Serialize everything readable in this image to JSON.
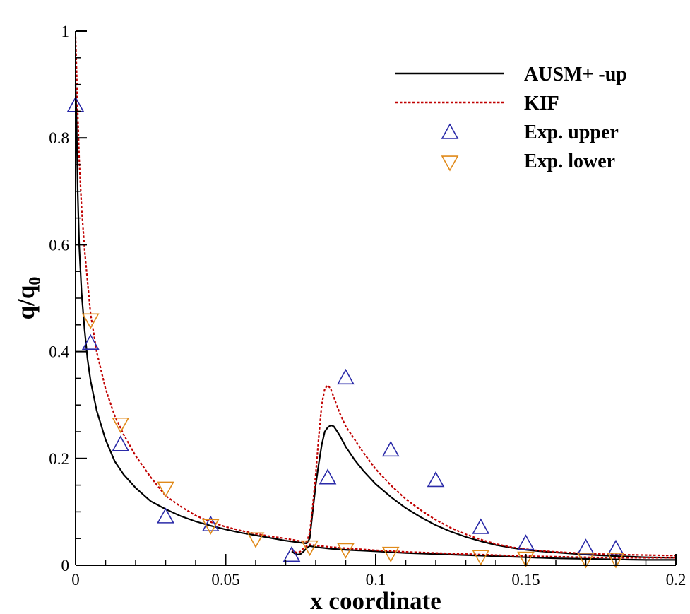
{
  "chart_data": {
    "type": "line",
    "title": "",
    "xlabel": "x coordinate",
    "ylabel": {
      "base": "q/q",
      "sub": "0"
    },
    "xlim": [
      0,
      0.2
    ],
    "ylim": [
      0,
      1
    ],
    "x_ticks": [
      0,
      0.05,
      0.1,
      0.15,
      0.2
    ],
    "x_tick_labels": [
      "0",
      "0.05",
      "0.1",
      "0.15",
      "0.2"
    ],
    "y_ticks": [
      0,
      0.2,
      0.4,
      0.6,
      0.8,
      1
    ],
    "y_tick_labels": [
      "0",
      "0.2",
      "0.4",
      "0.6",
      "0.8",
      "1"
    ],
    "grid": false,
    "legend_position": "top-right",
    "colors": {
      "ausm": "#000000",
      "kif": "#c00000",
      "upper": "#2a2aa8",
      "lower": "#e08a1a"
    },
    "series": [
      {
        "name": "AUSM+ -up",
        "style": "solid",
        "color": "#000000",
        "branches": [
          {
            "x": [
              0,
              0.0003,
              0.0007,
              0.0012,
              0.002,
              0.003,
              0.004,
              0.005,
              0.007,
              0.01,
              0.013,
              0.016,
              0.02,
              0.025,
              0.03,
              0.035,
              0.04,
              0.045,
              0.05,
              0.055,
              0.06,
              0.065,
              0.07,
              0.074,
              0.077,
              0.078,
              0.079,
              0.08,
              0.081,
              0.082,
              0.083,
              0.084,
              0.085,
              0.086,
              0.087,
              0.088,
              0.09,
              0.093,
              0.096,
              0.1,
              0.105,
              0.11,
              0.115,
              0.12,
              0.125,
              0.13,
              0.135,
              0.14,
              0.145,
              0.15,
              0.155,
              0.16,
              0.17,
              0.18,
              0.19,
              0.2
            ],
            "y": [
              0.9,
              0.84,
              0.7,
              0.6,
              0.51,
              0.44,
              0.385,
              0.345,
              0.29,
              0.235,
              0.195,
              0.17,
              0.145,
              0.12,
              0.105,
              0.092,
              0.082,
              0.074,
              0.067,
              0.061,
              0.056,
              0.051,
              0.046,
              0.043,
              0.041,
              0.05,
              0.1,
              0.15,
              0.19,
              0.225,
              0.25,
              0.258,
              0.262,
              0.26,
              0.252,
              0.243,
              0.222,
              0.197,
              0.176,
              0.152,
              0.128,
              0.107,
              0.09,
              0.075,
              0.063,
              0.053,
              0.045,
              0.038,
              0.033,
              0.029,
              0.026,
              0.024,
              0.02,
              0.017,
              0.015,
              0.014
            ]
          },
          {
            "x": [
              0.072,
              0.073,
              0.074,
              0.075,
              0.076,
              0.077,
              0.078,
              0.08,
              0.085,
              0.09,
              0.1,
              0.11,
              0.12,
              0.13,
              0.14,
              0.15,
              0.16,
              0.17,
              0.18,
              0.19,
              0.2
            ],
            "y": [
              0.026,
              0.022,
              0.02,
              0.021,
              0.026,
              0.032,
              0.036,
              0.034,
              0.031,
              0.029,
              0.026,
              0.023,
              0.021,
              0.019,
              0.017,
              0.015,
              0.013,
              0.012,
              0.011,
              0.01,
              0.01
            ]
          }
        ]
      },
      {
        "name": "KIF",
        "style": "dashed",
        "color": "#c00000",
        "branches": [
          {
            "x": [
              0,
              0.0003,
              0.0007,
              0.0012,
              0.002,
              0.003,
              0.004,
              0.005,
              0.007,
              0.01,
              0.013,
              0.016,
              0.02,
              0.025,
              0.03,
              0.035,
              0.04,
              0.045,
              0.05,
              0.055,
              0.06,
              0.065,
              0.07,
              0.074,
              0.077,
              0.078,
              0.079,
              0.08,
              0.081,
              0.082,
              0.083,
              0.084,
              0.085,
              0.086,
              0.087,
              0.088,
              0.09,
              0.093,
              0.096,
              0.1,
              0.105,
              0.11,
              0.115,
              0.12,
              0.125,
              0.13,
              0.135,
              0.14,
              0.145,
              0.15,
              0.155,
              0.16,
              0.17,
              0.18,
              0.19,
              0.2
            ],
            "y": [
              0.99,
              0.93,
              0.85,
              0.76,
              0.67,
              0.59,
              0.53,
              0.47,
              0.4,
              0.33,
              0.28,
              0.245,
              0.205,
              0.165,
              0.13,
              0.11,
              0.093,
              0.081,
              0.072,
              0.065,
              0.059,
              0.054,
              0.05,
              0.046,
              0.044,
              0.06,
              0.11,
              0.17,
              0.24,
              0.3,
              0.33,
              0.337,
              0.33,
              0.315,
              0.3,
              0.285,
              0.26,
              0.235,
              0.21,
              0.18,
              0.15,
              0.124,
              0.103,
              0.085,
              0.07,
              0.058,
              0.048,
              0.04,
              0.034,
              0.03,
              0.027,
              0.025,
              0.022,
              0.02,
              0.019,
              0.018
            ]
          },
          {
            "x": [
              0.072,
              0.073,
              0.074,
              0.075,
              0.076,
              0.077,
              0.078,
              0.08,
              0.085,
              0.09,
              0.1,
              0.11,
              0.12,
              0.13,
              0.14,
              0.15,
              0.16,
              0.17,
              0.18,
              0.19,
              0.2
            ],
            "y": [
              0.03,
              0.025,
              0.023,
              0.026,
              0.032,
              0.036,
              0.039,
              0.037,
              0.034,
              0.032,
              0.028,
              0.025,
              0.023,
              0.021,
              0.019,
              0.017,
              0.016,
              0.015,
              0.014,
              0.014,
              0.014
            ]
          }
        ]
      },
      {
        "name": "Exp. upper",
        "type": "scatter",
        "marker": "triangle-up",
        "color": "#2a2aa8",
        "x": [
          0,
          0.005,
          0.015,
          0.03,
          0.045,
          0.072,
          0.084,
          0.09,
          0.105,
          0.12,
          0.135,
          0.15,
          0.17,
          0.18
        ],
        "y": [
          0.86,
          0.415,
          0.225,
          0.09,
          0.075,
          0.018,
          0.163,
          0.35,
          0.215,
          0.158,
          0.07,
          0.04,
          0.032,
          0.03
        ]
      },
      {
        "name": "Exp. lower",
        "type": "scatter",
        "marker": "triangle-down",
        "color": "#e08a1a",
        "x": [
          0.005,
          0.015,
          0.03,
          0.045,
          0.06,
          0.078,
          0.09,
          0.105,
          0.135,
          0.15,
          0.17,
          0.18
        ],
        "y": [
          0.46,
          0.265,
          0.145,
          0.075,
          0.05,
          0.035,
          0.03,
          0.023,
          0.017,
          0.014,
          0.012,
          0.012
        ]
      }
    ]
  }
}
